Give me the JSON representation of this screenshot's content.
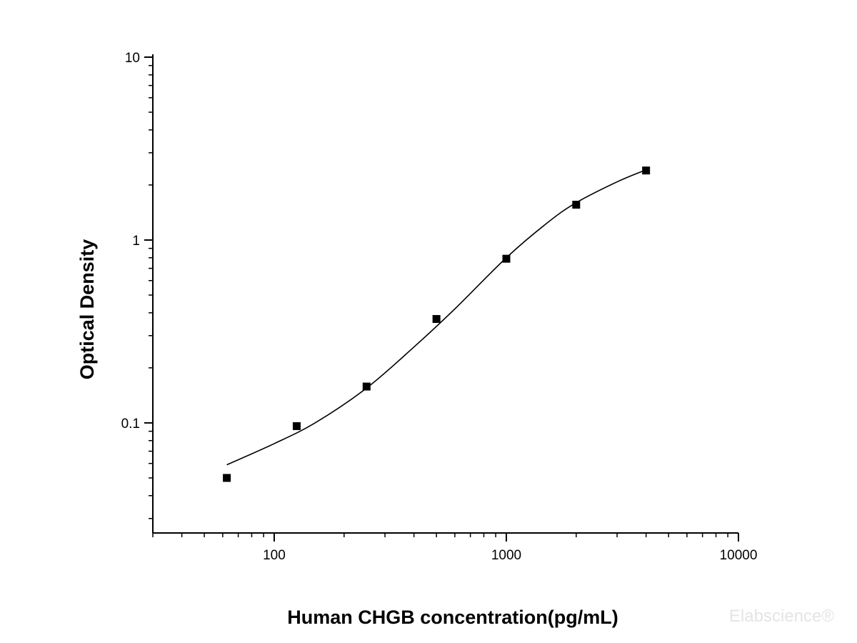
{
  "chart_data": {
    "type": "scatter",
    "xlabel": "Human CHGB concentration(pg/mL)",
    "ylabel": "Optical Density",
    "xscale": "log",
    "yscale": "log",
    "xlim": [
      30,
      10000
    ],
    "ylim": [
      0.025,
      10
    ],
    "x_ticks": [
      {
        "value": 100,
        "label": "100"
      },
      {
        "value": 1000,
        "label": "1000"
      },
      {
        "value": 10000,
        "label": "10000"
      }
    ],
    "y_ticks": [
      {
        "value": 0.1,
        "label": "0.1"
      },
      {
        "value": 1,
        "label": "1"
      },
      {
        "value": 10,
        "label": "10"
      }
    ],
    "grid": false,
    "series": [
      {
        "marker": "square",
        "color": "#000000",
        "points": [
          {
            "x": 62.5,
            "y": 0.05
          },
          {
            "x": 125,
            "y": 0.096
          },
          {
            "x": 250,
            "y": 0.158
          },
          {
            "x": 500,
            "y": 0.37
          },
          {
            "x": 1000,
            "y": 0.79
          },
          {
            "x": 2000,
            "y": 1.56
          },
          {
            "x": 4000,
            "y": 2.4
          }
        ]
      }
    ],
    "fit_curve": {
      "color": "#000000",
      "points": [
        {
          "x": 62.5,
          "y": 0.059
        },
        {
          "x": 100,
          "y": 0.077
        },
        {
          "x": 150,
          "y": 0.1
        },
        {
          "x": 250,
          "y": 0.155
        },
        {
          "x": 400,
          "y": 0.26
        },
        {
          "x": 600,
          "y": 0.42
        },
        {
          "x": 1000,
          "y": 0.8
        },
        {
          "x": 1500,
          "y": 1.24
        },
        {
          "x": 2000,
          "y": 1.6
        },
        {
          "x": 3000,
          "y": 2.08
        },
        {
          "x": 4000,
          "y": 2.42
        }
      ]
    },
    "watermark": "Elabscience®"
  }
}
